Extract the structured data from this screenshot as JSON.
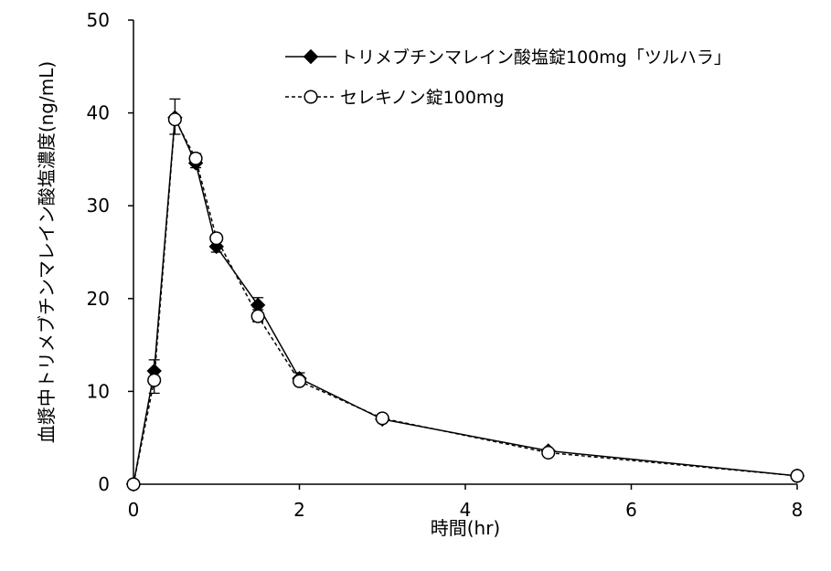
{
  "chart_data": {
    "type": "line",
    "xlabel": "時間(hr)",
    "ylabel": "血漿中トリメブチンマレイン酸塩濃度(ng/mL)",
    "xlim": [
      0,
      8
    ],
    "ylim": [
      0,
      50
    ],
    "x_ticks": [
      0,
      2,
      4,
      6,
      8
    ],
    "y_ticks": [
      0,
      10,
      20,
      30,
      40,
      50
    ],
    "grid": false,
    "legend_position": "top-right",
    "series": [
      {
        "name": "トリメブチンマレイン酸塩錠100mg「ツルハラ」",
        "marker": "filled-diamond",
        "line_style": "solid",
        "color": "#000000",
        "x": [
          0,
          0.25,
          0.5,
          0.75,
          1,
          1.5,
          2,
          3,
          5,
          8
        ],
        "y": [
          0,
          12.2,
          39.5,
          34.6,
          25.6,
          19.3,
          11.4,
          7.0,
          3.6,
          0.9
        ],
        "err_upper": [
          0,
          1.2,
          2.0,
          1.0,
          0.6,
          0.8,
          0.6,
          0,
          0,
          0
        ],
        "err_lower": [
          0,
          0.6,
          0,
          0.5,
          0.6,
          0.5,
          0,
          0,
          0,
          0
        ]
      },
      {
        "name": "セレキノン錠100mg",
        "marker": "open-circle",
        "line_style": "dashed",
        "color": "#000000",
        "x": [
          0,
          0.25,
          0.5,
          0.75,
          1,
          1.5,
          2,
          3,
          5,
          8
        ],
        "y": [
          0,
          11.2,
          39.3,
          35.1,
          26.5,
          18.1,
          11.1,
          7.1,
          3.4,
          0.9
        ],
        "err_upper": [
          0,
          0,
          0,
          0.5,
          0,
          0,
          0,
          0,
          0,
          0
        ],
        "err_lower": [
          0,
          1.4,
          1.6,
          0,
          0,
          0.6,
          0,
          0,
          0,
          0
        ]
      }
    ]
  }
}
